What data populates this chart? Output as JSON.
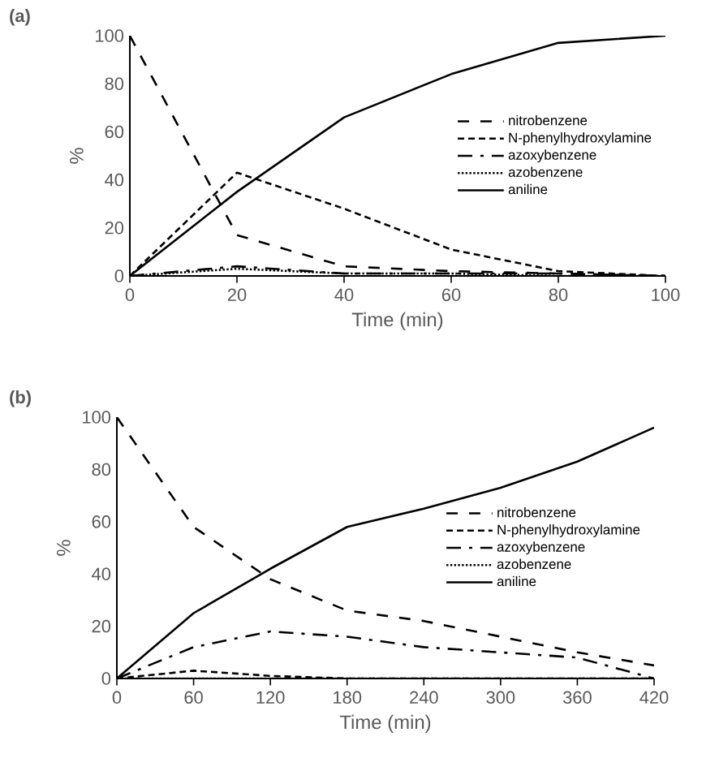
{
  "chart_data": [
    {
      "type": "line",
      "title": "(a)",
      "xlabel": "Time (min)",
      "ylabel": "%",
      "x": [
        0,
        20,
        40,
        60,
        80,
        100
      ],
      "series": [
        {
          "name": "nitrobenzene",
          "color": "#000000",
          "line_style": "dashed",
          "values": [
            100,
            17,
            4,
            2,
            1,
            0
          ]
        },
        {
          "name": "N-phenylhydroxylamine",
          "color": "#000000",
          "line_style": "dashed",
          "values": [
            0,
            43,
            28,
            11,
            2,
            0
          ]
        },
        {
          "name": "azoxybenzene",
          "color": "#000000",
          "line_style": "dashed",
          "values": [
            0,
            4,
            1,
            1,
            1,
            0
          ]
        },
        {
          "name": "azobenzene",
          "color": "#000000",
          "line_style": "dotted",
          "values": [
            0,
            3,
            1,
            1,
            0,
            0
          ]
        },
        {
          "name": "aniline",
          "color": "#000000",
          "line_style": "solid",
          "values": [
            0,
            35,
            66,
            84,
            97,
            100
          ]
        }
      ],
      "xlim": [
        0,
        100
      ],
      "xticks": [
        0,
        20,
        40,
        60,
        80,
        100
      ],
      "ylim": [
        0,
        100
      ],
      "yticks": [
        0,
        20,
        40,
        60,
        80,
        100
      ],
      "grid": false,
      "legend": "right",
      "marker": "none"
    },
    {
      "type": "line",
      "title": "(b)",
      "xlabel": "Time (min)",
      "ylabel": "%",
      "x": [
        0,
        60,
        120,
        180,
        240,
        300,
        360,
        420
      ],
      "series": [
        {
          "name": "nitrobenzene",
          "color": "#000000",
          "line_style": "dashed",
          "values": [
            100,
            58,
            38,
            26,
            22,
            16,
            10,
            5
          ]
        },
        {
          "name": "N-phenylhydroxylamine",
          "color": "#000000",
          "line_style": "dashed",
          "values": [
            0,
            3,
            1,
            0,
            0,
            0,
            0,
            0
          ]
        },
        {
          "name": "azoxybenzene",
          "color": "#000000",
          "line_style": "dashed",
          "values": [
            0,
            12,
            18,
            16,
            12,
            10,
            8,
            0
          ]
        },
        {
          "name": "azobenzene",
          "color": "#000000",
          "line_style": "dotted",
          "values": [
            0,
            0,
            0,
            0,
            0,
            0,
            0,
            0
          ]
        },
        {
          "name": "aniline",
          "color": "#000000",
          "line_style": "solid",
          "values": [
            0,
            25,
            42,
            58,
            65,
            73,
            83,
            96
          ]
        }
      ],
      "xlim": [
        0,
        420
      ],
      "xticks": [
        0,
        60,
        120,
        180,
        240,
        300,
        360,
        420
      ],
      "ylim": [
        0,
        100
      ],
      "yticks": [
        0,
        20,
        40,
        60,
        80,
        100
      ],
      "grid": false,
      "legend": "right",
      "marker": "none"
    }
  ]
}
